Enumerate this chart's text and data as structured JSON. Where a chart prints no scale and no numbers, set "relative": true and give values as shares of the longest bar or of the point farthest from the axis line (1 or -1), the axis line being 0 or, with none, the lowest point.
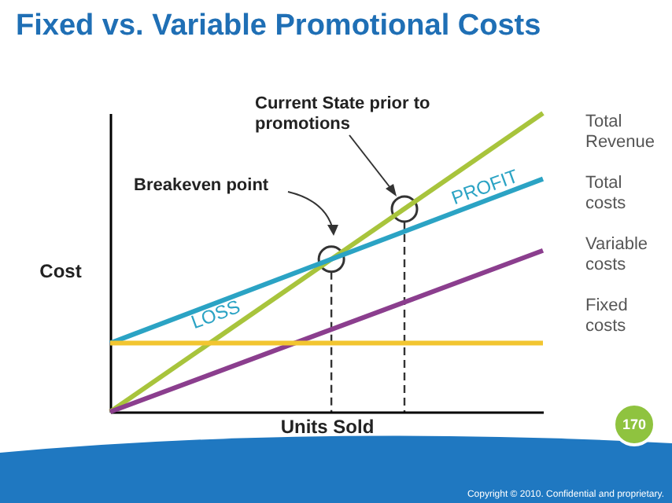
{
  "chart_data": {
    "type": "line",
    "title": "Fixed vs. Variable Promotional Costs",
    "xlabel": "Units Sold",
    "ylabel": "Cost",
    "categories": [
      null,
      null
    ],
    "relative": true,
    "legend": "right",
    "grid": false,
    "series": [
      {
        "name": "Total Revenue",
        "color": "#a8c43c",
        "values": [
          0,
          1
        ]
      },
      {
        "name": "Total costs",
        "color": "#2ba3c4",
        "values": [
          0.23,
          0.78
        ]
      },
      {
        "name": "Variable costs",
        "color": "#8b3e8e",
        "values": [
          0,
          0.54
        ]
      },
      {
        "name": "Fixed costs",
        "color": "#f2c530",
        "values": [
          0.23,
          0.23
        ]
      }
    ],
    "annotations": [
      "Current State prior to promotions",
      "Breakeven point",
      "PROFIT",
      "LOSS",
      "170",
      "Copyright © 2010. Confidential and proprietary."
    ]
  }
}
